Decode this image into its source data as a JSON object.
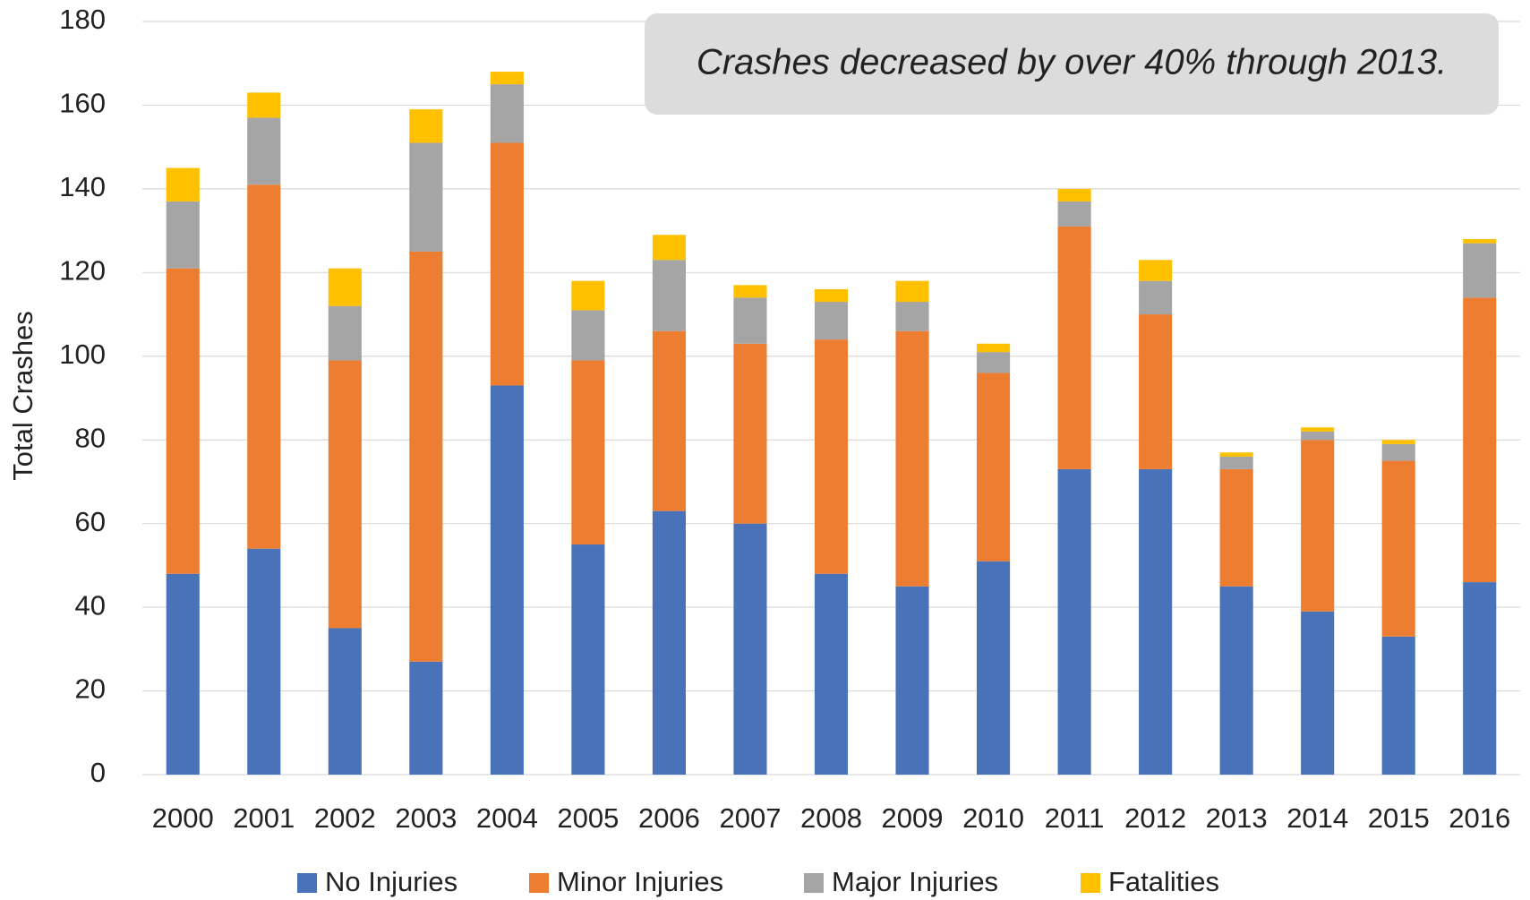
{
  "chart_data": {
    "type": "stacked_bar",
    "annotation": "Crashes decreased by over 40% through 2013.",
    "y_label": "Total Crashes",
    "categories": [
      "2000",
      "2001",
      "2002",
      "2003",
      "2004",
      "2005",
      "2006",
      "2007",
      "2008",
      "2009",
      "2010",
      "2011",
      "2012",
      "2013",
      "2014",
      "2015",
      "2016"
    ],
    "series": [
      {
        "name": "No Injuries",
        "color": "#4a72b8",
        "values": [
          48,
          54,
          35,
          27,
          93,
          55,
          63,
          60,
          48,
          45,
          51,
          73,
          73,
          45,
          39,
          33,
          46
        ]
      },
      {
        "name": "Minor Injuries",
        "color": "#ed7d31",
        "values": [
          73,
          87,
          64,
          98,
          58,
          44,
          43,
          43,
          56,
          61,
          45,
          58,
          37,
          28,
          41,
          42,
          68
        ]
      },
      {
        "name": "Major Injuries",
        "color": "#a5a5a5",
        "values": [
          16,
          16,
          13,
          26,
          14,
          12,
          17,
          11,
          9,
          7,
          5,
          6,
          8,
          3,
          2,
          4,
          13
        ]
      },
      {
        "name": "Fatalities",
        "color": "#ffc000",
        "values": [
          8,
          6,
          9,
          8,
          3,
          7,
          6,
          3,
          3,
          5,
          2,
          3,
          5,
          1,
          1,
          1,
          1
        ]
      }
    ],
    "ylim": [
      0,
      180
    ],
    "yticks": [
      0,
      20,
      40,
      60,
      80,
      100,
      120,
      140,
      160,
      180
    ],
    "grid": true,
    "legend": "bottom"
  }
}
